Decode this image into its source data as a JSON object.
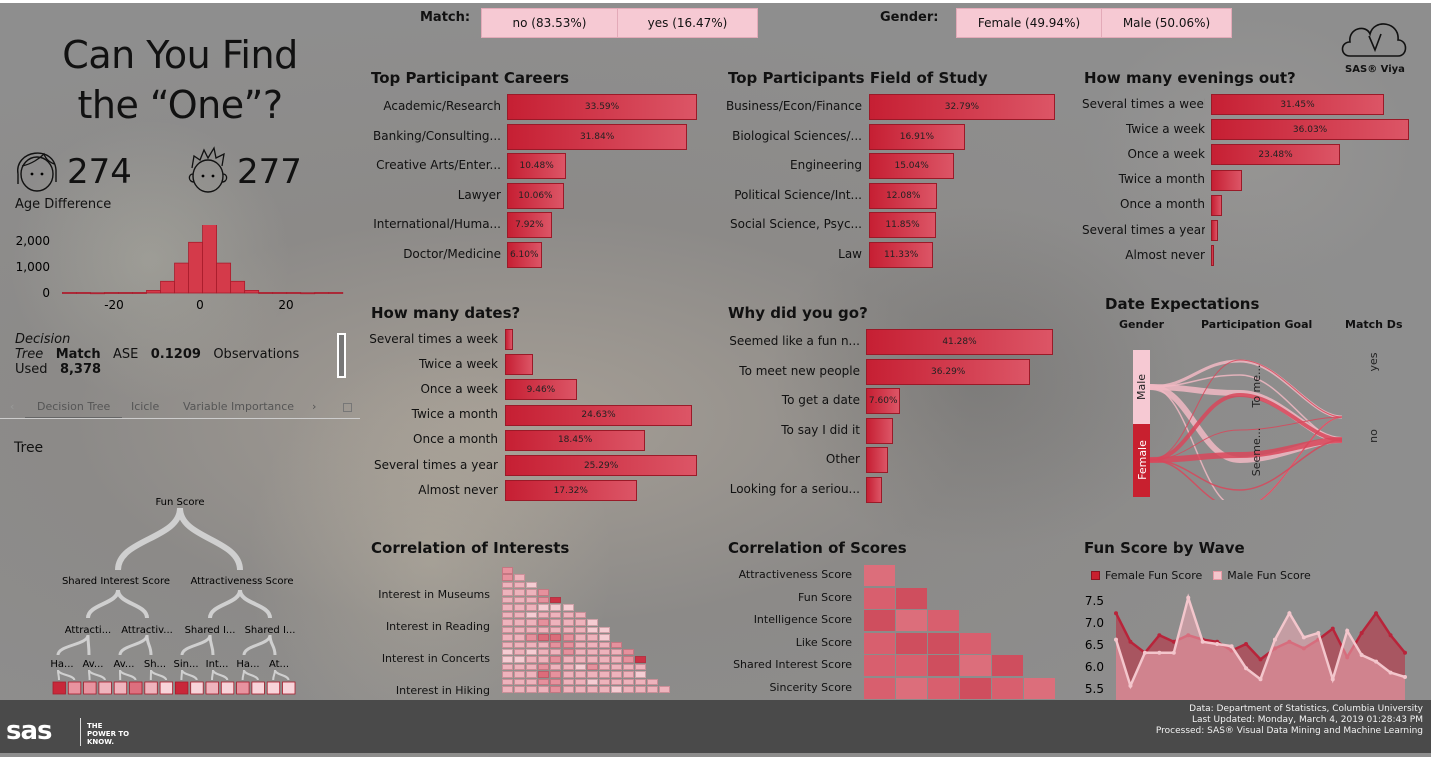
{
  "header": {
    "match_label": "Match:",
    "match_options": [
      "no (83.53%)",
      "yes (16.47%)"
    ],
    "gender_label": "Gender:",
    "gender_options": [
      "Female (49.94%)",
      "Male (50.06%)"
    ],
    "brand": "SAS® Viya"
  },
  "left": {
    "title_line1": "Can You Find",
    "title_line2": "the “One”?",
    "female_count": "274",
    "male_count": "277",
    "age_diff_label": "Age Difference",
    "model_info": {
      "line1": "Decision",
      "tree": "Tree",
      "target": "Match",
      "ase_label": "ASE",
      "ase_value": "0.1209",
      "obs_label": "Observations",
      "used": "Used",
      "obs_value": "8,378"
    },
    "tabs": [
      "Decision Tree",
      "Icicle",
      "Variable Importance"
    ],
    "tree_label": "Tree",
    "tree": {
      "root": "Fun Score",
      "level1": [
        "Shared Interest Score",
        "Attractiveness Score"
      ],
      "level2": [
        "Attracti...",
        "Attractiv...",
        "Shared I...",
        "Shared I..."
      ],
      "level3": [
        "Ha...",
        "Av...",
        "Av...",
        "Sh...",
        "Sin...",
        "Int...",
        "Ha...",
        "At..."
      ],
      "leaf_levels": [
        4,
        2,
        2,
        1,
        1,
        3,
        1,
        0,
        4,
        0,
        1,
        0,
        2,
        0,
        0,
        0
      ]
    }
  },
  "chart_data": [
    {
      "id": "careers",
      "type": "bar",
      "title": "Top Participant Careers",
      "categories": [
        "Academic/Research",
        "Banking/Consulting...",
        "Creative Arts/Enter...",
        "Lawyer",
        "International/Huma...",
        "Doctor/Medicine"
      ],
      "values": [
        33.59,
        31.84,
        10.48,
        10.06,
        7.92,
        6.1
      ],
      "labels": [
        "33.59%",
        "31.84%",
        "10.48%",
        "10.06%",
        "7.92%",
        "6.10%"
      ]
    },
    {
      "id": "field",
      "type": "bar",
      "title": "Top Participants Field of Study",
      "categories": [
        "Business/Econ/Finance",
        "Biological Sciences/...",
        "Engineering",
        "Political Science/Int...",
        "Social Science, Psyc...",
        "Law"
      ],
      "values": [
        32.79,
        16.91,
        15.04,
        12.08,
        11.85,
        11.33
      ],
      "labels": [
        "32.79%",
        "16.91%",
        "15.04%",
        "12.08%",
        "11.85%",
        "11.33%"
      ]
    },
    {
      "id": "evenings",
      "type": "bar",
      "title": "How many evenings out?",
      "categories": [
        "Several times a week",
        "Twice a week",
        "Once a week",
        "Twice a month",
        "Once a month",
        "Several times a year",
        "Almost never"
      ],
      "values": [
        31.45,
        36.03,
        23.48,
        5.6,
        2.0,
        1.3,
        0.5
      ],
      "labels": [
        "31.45%",
        "36.03%",
        "23.48%",
        "",
        "",
        "",
        ""
      ]
    },
    {
      "id": "dates",
      "type": "bar",
      "title": "How many dates?",
      "categories": [
        "Several times a week",
        "Twice a week",
        "Once a week",
        "Twice a month",
        "Once a month",
        "Several times a year",
        "Almost never"
      ],
      "values": [
        1.1,
        3.7,
        9.46,
        24.63,
        18.45,
        25.29,
        17.32
      ],
      "labels": [
        "",
        "",
        "9.46%",
        "24.63%",
        "18.45%",
        "25.29%",
        "17.32%"
      ]
    },
    {
      "id": "why",
      "type": "bar",
      "title": "Why did you go?",
      "categories": [
        "Seemed like a fun n...",
        "To meet new people",
        "To get a date",
        "To say I did it",
        "Other",
        "Looking for a seriou..."
      ],
      "values": [
        41.28,
        36.29,
        7.6,
        6.0,
        4.9,
        3.6
      ],
      "labels": [
        "41.28%",
        "36.29%",
        "7.60%",
        "",
        "",
        ""
      ]
    },
    {
      "id": "hist",
      "type": "bar",
      "title": "Age Difference",
      "x_ticks": [
        "-20",
        "0",
        "20"
      ],
      "y_ticks": [
        "0",
        "1,000",
        "2,000"
      ],
      "bin_start": -32,
      "bin_width": 3.26,
      "values": [
        20,
        20,
        10,
        20,
        20,
        20,
        100,
        450,
        1150,
        1950,
        2700,
        1150,
        450,
        100,
        20,
        20,
        20,
        10,
        20,
        20
      ]
    },
    {
      "id": "fun",
      "type": "area",
      "title": "Fun Score by Wave",
      "legend": [
        "Female Fun Score",
        "Male Fun Score"
      ],
      "y_ticks": [
        "7.5",
        "7.0",
        "6.5",
        "6.0",
        "5.5"
      ],
      "ylim": [
        5.5,
        7.5
      ],
      "series": [
        {
          "name": "Female Fun Score",
          "values": [
            7.2,
            6.55,
            6.3,
            6.7,
            6.55,
            6.7,
            6.6,
            6.55,
            6.35,
            6.5,
            6.15,
            6.4,
            6.55,
            6.4,
            6.6,
            6.85,
            6.2,
            6.75,
            7.2,
            6.7,
            6.3
          ]
        },
        {
          "name": "Male Fun Score",
          "values": [
            6.6,
            5.55,
            6.3,
            6.3,
            6.3,
            7.55,
            6.55,
            6.5,
            6.45,
            5.95,
            5.7,
            6.6,
            7.2,
            6.65,
            6.75,
            5.7,
            6.8,
            6.25,
            6.1,
            5.85,
            5.75
          ]
        }
      ]
    },
    {
      "id": "corr_interests",
      "type": "heatmap",
      "title": "Correlation of Interests",
      "row_labels": [
        "Interest in Museums",
        "Interest in Reading",
        "Interest in Concerts",
        "Interest in Hiking"
      ],
      "levels": [
        "2",
        "21",
        "110",
        "1112",
        "11124",
        "111000",
        "1101111",
        "11121110",
        "111111100",
        "112332110",
        "1111221112",
        "01011211112",
        "001121111124",
        "111211021111",
        "111321111110",
        "1112211011111",
        "11112111101111"
      ]
    },
    {
      "id": "corr_scores",
      "type": "heatmap",
      "title": "Correlation of Scores",
      "row_labels": [
        "Attractiveness Score",
        "Fun Score",
        "Intelligence Score",
        "Like Score",
        "Shared Interest Score",
        "Sincerity Score"
      ],
      "levels": [
        "1",
        "23",
        "312",
        "2332",
        "22313",
        "212321"
      ]
    }
  ],
  "sankey": {
    "title": "Date Expectations",
    "axes": [
      "Gender",
      "Participation Goal",
      "Match Ds"
    ],
    "gender": [
      "Male",
      "Female"
    ],
    "goal": [
      "To me...",
      "Seeme..."
    ],
    "match": [
      "yes",
      "no"
    ]
  },
  "footer": {
    "logo": "sas",
    "tagline": "THE POWER TO KNOW.",
    "lines": [
      "Data: Department of Statistics, Columbia University",
      "Last Updated: Monday, March 4, 2019 01:28:43 PM",
      "Processed: SAS® Visual Data Mining and Machine Learning"
    ]
  },
  "colors": {
    "accent": "#c8202f",
    "pink": "#f6c9d3",
    "footer": "#4a4a4a"
  }
}
